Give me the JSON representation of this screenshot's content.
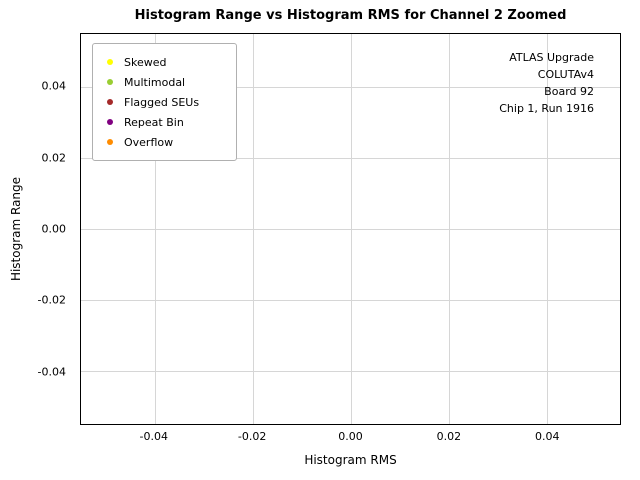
{
  "chart_data": {
    "type": "scatter",
    "title": "Histogram Range vs Histogram RMS for Channel 2 Zoomed",
    "xlabel": "Histogram RMS",
    "ylabel": "Histogram Range",
    "xlim": [
      -0.055,
      0.055
    ],
    "ylim": [
      -0.055,
      0.055
    ],
    "grid": true,
    "xticks": [
      {
        "v": -0.04,
        "label": "-0.04"
      },
      {
        "v": -0.02,
        "label": "-0.02"
      },
      {
        "v": 0.0,
        "label": "0.00"
      },
      {
        "v": 0.02,
        "label": "0.02"
      },
      {
        "v": 0.04,
        "label": "0.04"
      }
    ],
    "yticks": [
      {
        "v": -0.04,
        "label": "-0.04"
      },
      {
        "v": -0.02,
        "label": "-0.02"
      },
      {
        "v": 0.0,
        "label": "0.00"
      },
      {
        "v": 0.02,
        "label": "0.02"
      },
      {
        "v": 0.04,
        "label": "0.04"
      }
    ],
    "legend": {
      "position": "upper left",
      "items": [
        {
          "label": "Skewed",
          "color": "#ffff00"
        },
        {
          "label": "Multimodal",
          "color": "#9acd32"
        },
        {
          "label": "Flagged SEUs",
          "color": "#a52a2a"
        },
        {
          "label": "Repeat Bin",
          "color": "#800080"
        },
        {
          "label": "Overflow",
          "color": "#ff8c00"
        }
      ]
    },
    "series": [],
    "annotation": {
      "lines": [
        "ATLAS Upgrade",
        "COLUTAv4",
        "Board 92",
        "Chip 1, Run 1916"
      ]
    }
  }
}
